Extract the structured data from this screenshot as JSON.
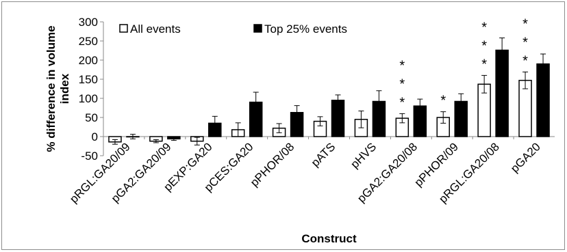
{
  "chart_data": {
    "type": "bar",
    "xlabel": "Construct",
    "ylabel": "% difference in volume index",
    "ylim": [
      -50,
      300
    ],
    "yticks": [
      -50,
      0,
      50,
      100,
      150,
      200,
      250,
      300
    ],
    "grid": false,
    "legend_placement": "top-left",
    "categories": [
      "pRGL:GA20/09",
      "pGA2:GA20/09",
      "pEXP:GA20",
      "pCES:GA20",
      "pPHOR/08",
      "pATS",
      "pHVS",
      "pGA2:GA20/08",
      "pPHOR/09",
      "pRGL:GA20/08",
      "pGA20"
    ],
    "series": [
      {
        "name": "All events",
        "color": "#ffffff",
        "values": [
          -14,
          -12,
          -12,
          18,
          22,
          40,
          45,
          48,
          50,
          137,
          147
        ],
        "errors": [
          6,
          4,
          10,
          18,
          12,
          12,
          22,
          12,
          15,
          23,
          22
        ]
      },
      {
        "name": "Top 25% events",
        "color": "#000000",
        "values": [
          0,
          -6,
          35,
          90,
          63,
          95,
          92,
          80,
          92,
          226,
          190
        ],
        "errors": [
          6,
          4,
          18,
          26,
          18,
          14,
          28,
          18,
          20,
          32,
          26
        ]
      }
    ],
    "annotations": [
      {
        "category": "pGA2:GA20/08",
        "text": "*",
        "stack": 3
      },
      {
        "category": "pPHOR/09",
        "text": "*",
        "stack": 1
      },
      {
        "category": "pRGL:GA20/08",
        "text": "*",
        "stack": 3
      },
      {
        "category": "pGA20",
        "text": "*",
        "stack": 3
      }
    ]
  },
  "colors": {
    "axis": "#888888",
    "bar_stroke": "#000000"
  }
}
